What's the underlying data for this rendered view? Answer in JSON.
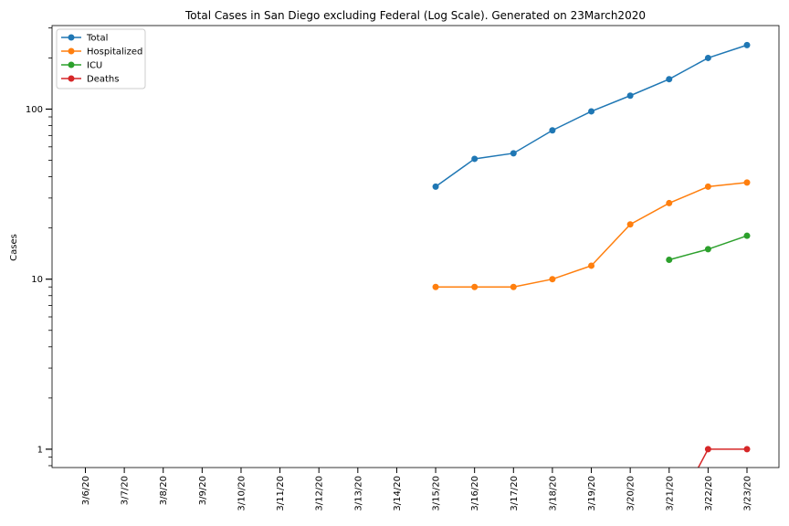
{
  "chart_data": {
    "type": "line",
    "title": "Total Cases in San Diego excluding Federal (Log Scale). Generated on 23March2020",
    "xlabel": "",
    "ylabel": "Cases",
    "yscale": "log",
    "ylim": [
      0.78,
      310
    ],
    "y_ticks": [
      1,
      10,
      100
    ],
    "categories": [
      "3/6/20",
      "3/7/20",
      "3/8/20",
      "3/9/20",
      "3/10/20",
      "3/11/20",
      "3/12/20",
      "3/13/20",
      "3/14/20",
      "3/15/20",
      "3/16/20",
      "3/17/20",
      "3/18/20",
      "3/19/20",
      "3/20/20",
      "3/21/20",
      "3/22/20",
      "3/23/20"
    ],
    "legend_position": "top-left",
    "grid": false,
    "series": [
      {
        "name": "Total",
        "color": "#1f77b4",
        "values": [
          null,
          null,
          null,
          null,
          null,
          null,
          null,
          null,
          null,
          35,
          51,
          55,
          75,
          97,
          120,
          150,
          200,
          238
        ]
      },
      {
        "name": "Hospitalized",
        "color": "#ff7f0e",
        "values": [
          null,
          null,
          null,
          null,
          null,
          null,
          null,
          null,
          null,
          9,
          9,
          9,
          10,
          12,
          21,
          28,
          35,
          37
        ]
      },
      {
        "name": "ICU",
        "color": "#2ca02c",
        "values": [
          null,
          null,
          null,
          null,
          null,
          null,
          null,
          null,
          null,
          null,
          null,
          null,
          null,
          null,
          null,
          13,
          15,
          18
        ]
      },
      {
        "name": "Deaths",
        "color": "#d62728",
        "values": [
          null,
          null,
          null,
          null,
          null,
          null,
          null,
          null,
          null,
          null,
          null,
          null,
          null,
          null,
          null,
          0,
          1,
          1
        ]
      }
    ]
  }
}
